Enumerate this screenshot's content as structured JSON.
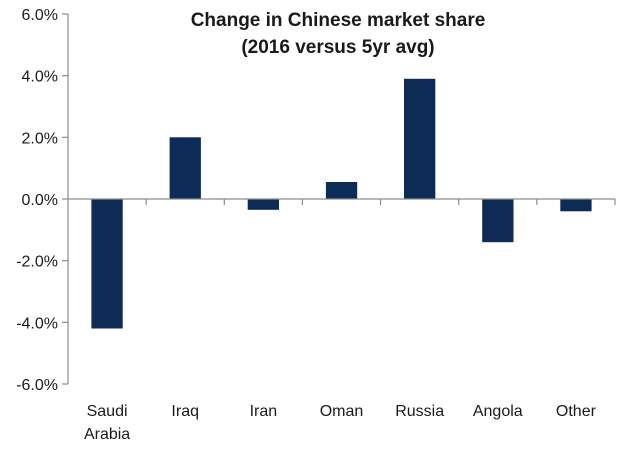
{
  "chart_data": {
    "type": "bar",
    "title": "Change in Chinese market share",
    "subtitle": "(2016 versus 5yr avg)",
    "xlabel": "",
    "ylabel": "",
    "ylim": [
      -6.0,
      6.0
    ],
    "yticks": [
      6.0,
      4.0,
      2.0,
      0.0,
      -2.0,
      -4.0,
      -6.0
    ],
    "ytick_labels": [
      "6.0%",
      "4.0%",
      "2.0%",
      "0.0%",
      "-2.0%",
      "-4.0%",
      "-6.0%"
    ],
    "categories": [
      "Saudi Arabia",
      "Iraq",
      "Iran",
      "Oman",
      "Russia",
      "Angola",
      "Other"
    ],
    "category_lines": [
      [
        "Saudi",
        "Arabia"
      ],
      [
        "Iraq"
      ],
      [
        "Iran"
      ],
      [
        "Oman"
      ],
      [
        "Russia"
      ],
      [
        "Angola"
      ],
      [
        "Other"
      ]
    ],
    "values": [
      -4.2,
      2.0,
      -0.35,
      0.55,
      3.9,
      -1.4,
      -0.4
    ],
    "unit": "%",
    "grid": false,
    "legend": "none",
    "bar_color": "#0d2b56",
    "axis_color": "#8c8c8c"
  }
}
